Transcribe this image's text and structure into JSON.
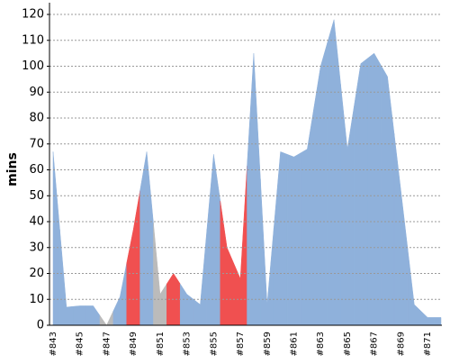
{
  "chart_data": {
    "type": "area",
    "y_label": "mins",
    "categories": [
      "#843",
      null,
      "#845",
      null,
      "#847",
      null,
      "#849",
      null,
      "#851",
      null,
      "#853",
      null,
      "#855",
      null,
      "#857",
      null,
      "#859",
      null,
      "#861",
      null,
      "#863",
      null,
      "#865",
      null,
      "#867",
      null,
      "#869",
      null,
      "#871",
      null
    ],
    "values": [
      67,
      7,
      7.5,
      7.5,
      0,
      11,
      37,
      67,
      12,
      20,
      12,
      8,
      66,
      30,
      18,
      105,
      8,
      67,
      65,
      68,
      100,
      118,
      68,
      101,
      105,
      96,
      52,
      8,
      3,
      3
    ],
    "colors": [
      "#8fb1db",
      "#8fb1db",
      "#8fb1db",
      "#8fb1db",
      "#bbbbbb",
      "#8fb1db",
      "#f05050",
      "#8fb1db",
      "#bbbbbb",
      "#f05050",
      "#8fb1db",
      "#8fb1db",
      "#8fb1db",
      "#f05050",
      "#f05050",
      "#8fb1db",
      "#8fb1db",
      "#8fb1db",
      "#8fb1db",
      "#8fb1db",
      "#8fb1db",
      "#8fb1db",
      "#8fb1db",
      "#8fb1db",
      "#8fb1db",
      "#8fb1db",
      "#8fb1db",
      "#8fb1db",
      "#8fb1db",
      "#8fb1db"
    ],
    "ylim": [
      0,
      123
    ],
    "yticks": [
      0,
      10,
      20,
      30,
      40,
      50,
      60,
      70,
      80,
      90,
      100,
      110,
      120
    ],
    "grid": true
  }
}
